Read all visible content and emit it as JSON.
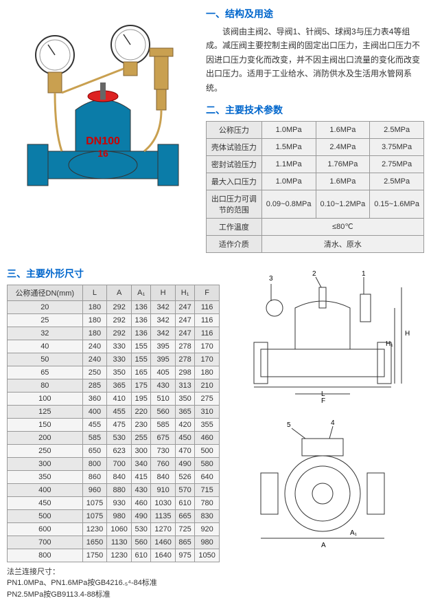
{
  "section1": {
    "title": "一、结构及用途",
    "text": "该阀由主阀2、导阀1、针阀5、球阀3与压力表4等组成。减压阀主要控制主阀的固定出口压力，主阀出口压力不因进口压力变化而改变，并不因主阀出口流量的变化而改变出口压力。适用于工业给水、消防供水及生活用水管网系统。"
  },
  "section2": {
    "title": "二、主要技术参数",
    "rows": [
      {
        "label": "公称压力",
        "v1": "1.0MPa",
        "v2": "1.6MPa",
        "v3": "2.5MPa"
      },
      {
        "label": "壳体试验压力",
        "v1": "1.5MPa",
        "v2": "2.4MPa",
        "v3": "3.75MPa"
      },
      {
        "label": "密封试验压力",
        "v1": "1.1MPa",
        "v2": "1.76MPa",
        "v3": "2.75MPa"
      },
      {
        "label": "最大入口压力",
        "v1": "1.0MPa",
        "v2": "1.6MPa",
        "v3": "2.5MPa"
      },
      {
        "label": "出口压力可调节的范围",
        "v1": "0.09~0.8MPa",
        "v2": "0.10~1.2MPa",
        "v3": "0.15~1.6MPa"
      }
    ],
    "temp_label": "工作温度",
    "temp_value": "≤80℃",
    "media_label": "适作介质",
    "media_value": "清水、原水"
  },
  "section3": {
    "title": "三、主要外形尺寸",
    "headers": [
      "公称通径DN(mm)",
      "L",
      "A",
      "A₁",
      "H",
      "H₁",
      "F"
    ],
    "rows": [
      [
        "20",
        "180",
        "292",
        "136",
        "342",
        "247",
        "116"
      ],
      [
        "25",
        "180",
        "292",
        "136",
        "342",
        "247",
        "116"
      ],
      [
        "32",
        "180",
        "292",
        "136",
        "342",
        "247",
        "116"
      ],
      [
        "40",
        "240",
        "330",
        "155",
        "395",
        "278",
        "170"
      ],
      [
        "50",
        "240",
        "330",
        "155",
        "395",
        "278",
        "170"
      ],
      [
        "65",
        "250",
        "350",
        "165",
        "405",
        "298",
        "180"
      ],
      [
        "80",
        "285",
        "365",
        "175",
        "430",
        "313",
        "210"
      ],
      [
        "100",
        "360",
        "410",
        "195",
        "510",
        "350",
        "275"
      ],
      [
        "125",
        "400",
        "455",
        "220",
        "560",
        "365",
        "310"
      ],
      [
        "150",
        "455",
        "475",
        "230",
        "585",
        "420",
        "355"
      ],
      [
        "200",
        "585",
        "530",
        "255",
        "675",
        "450",
        "460"
      ],
      [
        "250",
        "650",
        "623",
        "300",
        "730",
        "470",
        "500"
      ],
      [
        "300",
        "800",
        "700",
        "340",
        "760",
        "490",
        "580"
      ],
      [
        "350",
        "860",
        "840",
        "415",
        "840",
        "526",
        "640"
      ],
      [
        "400",
        "960",
        "880",
        "430",
        "910",
        "570",
        "715"
      ],
      [
        "450",
        "1075",
        "930",
        "460",
        "1030",
        "610",
        "780"
      ],
      [
        "500",
        "1075",
        "980",
        "490",
        "1135",
        "665",
        "830"
      ],
      [
        "600",
        "1230",
        "1060",
        "530",
        "1270",
        "725",
        "920"
      ],
      [
        "700",
        "1650",
        "1130",
        "560",
        "1460",
        "865",
        "980"
      ],
      [
        "800",
        "1750",
        "1230",
        "610",
        "1640",
        "975",
        "1050"
      ]
    ]
  },
  "footnote": {
    "line1": "法兰连接尺寸：",
    "line2": "PN1.0MPa、PN1.6MPa按GB4216.₅⁴-84标准",
    "line3": "PN2.5MPa按GB9113.4-88标准"
  },
  "product": {
    "marking": "DN100",
    "pressure": "16"
  },
  "diagram1_labels": [
    "3",
    "2",
    "1",
    "H",
    "H₁",
    "L",
    "F",
    "A",
    "A₁"
  ],
  "diagram2_labels": [
    "5",
    "4"
  ]
}
